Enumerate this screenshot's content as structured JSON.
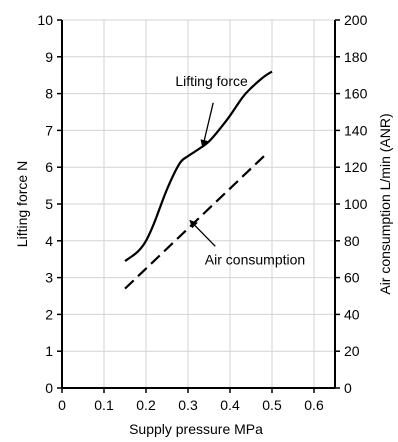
{
  "chart_data": {
    "type": "line",
    "title": "",
    "xlabel": "Supply pressure  MPa",
    "ylabel_left": "Lifting force  N",
    "ylabel_right": "Air consumption  L/min (ANR)",
    "xlim": [
      0,
      0.65
    ],
    "ylim_left": [
      0,
      10
    ],
    "ylim_right": [
      0,
      200
    ],
    "x_ticks": [
      "0",
      "0.1",
      "0.2",
      "0.3",
      "0.4",
      "0.5",
      "0.6"
    ],
    "y_ticks_left": [
      "0",
      "1",
      "2",
      "3",
      "4",
      "5",
      "6",
      "7",
      "8",
      "9",
      "10"
    ],
    "y_ticks_right": [
      "0",
      "20",
      "40",
      "60",
      "80",
      "100",
      "120",
      "140",
      "160",
      "180",
      "200"
    ],
    "grid": true,
    "series": [
      {
        "name": "Lifting force",
        "axis": "left",
        "style": "solid",
        "x": [
          0.15,
          0.18,
          0.2,
          0.22,
          0.25,
          0.28,
          0.3,
          0.32,
          0.35,
          0.38,
          0.4,
          0.43,
          0.45,
          0.48,
          0.5
        ],
        "y": [
          3.45,
          3.7,
          4.0,
          4.5,
          5.4,
          6.1,
          6.3,
          6.45,
          6.7,
          7.1,
          7.4,
          7.9,
          8.15,
          8.45,
          8.6
        ]
      },
      {
        "name": "Air consumption",
        "axis": "right",
        "style": "dashed",
        "x": [
          0.15,
          0.2,
          0.25,
          0.3,
          0.35,
          0.4,
          0.45,
          0.49
        ],
        "y": [
          54,
          64,
          76,
          88,
          98,
          108,
          118,
          128
        ]
      }
    ],
    "annotations": [
      {
        "text": "Lifting force",
        "series": 0,
        "label_x": 0.27,
        "label_y": 8.2,
        "arrow_x": 0.335,
        "arrow_y": 6.55
      },
      {
        "text": "Air consumption",
        "series": 1,
        "label_x": 0.34,
        "label_y": 3.35,
        "arrow_x": 0.305,
        "arrow_y": 4.55
      }
    ]
  }
}
